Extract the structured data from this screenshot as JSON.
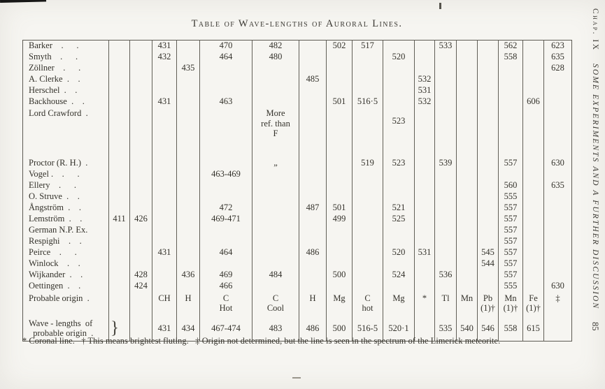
{
  "page": {
    "title": "Table of Wave-lengths of Auroral Lines.",
    "footnote": "* Coronal line.  † This means brightest fluting.  ‡ Origin not determined, but the line is seen in the spectrum of the Limerick meteorite."
  },
  "margin": {
    "chapter": "Chap. IX",
    "running_title": "SOME EXPERIMENTS AND A FURTHER DISCUSSION",
    "page_number": "85"
  },
  "table": {
    "rows": [
      {
        "cls": "",
        "cells": [
          "Barker .  .",
          "",
          "",
          "431",
          "",
          "470",
          "482",
          "",
          "502",
          "517",
          "",
          "",
          "533",
          "",
          "",
          "562",
          "",
          "623"
        ]
      },
      {
        "cls": "",
        "cells": [
          "Smyth .  .",
          "",
          "",
          "432",
          "",
          "464",
          "480",
          "",
          "",
          "",
          "520",
          "",
          "",
          "",
          "",
          "558",
          "",
          "635"
        ]
      },
      {
        "cls": "",
        "cells": [
          "Zöllner .  .",
          "",
          "",
          "",
          "435",
          "",
          "",
          "",
          "",
          "",
          "",
          "",
          "",
          "",
          "",
          "",
          "",
          "628"
        ]
      },
      {
        "cls": "",
        "cells": [
          "A. Clerke . .",
          "",
          "",
          "",
          "",
          "",
          "",
          "485",
          "",
          "",
          "",
          "532",
          "",
          "",
          "",
          "",
          "",
          ""
        ]
      },
      {
        "cls": "",
        "cells": [
          "Herschel . .",
          "",
          "",
          "",
          "",
          "",
          "",
          "",
          "",
          "",
          "",
          "531",
          "",
          "",
          "",
          "",
          "",
          ""
        ]
      },
      {
        "cls": "",
        "cells": [
          "Backhouse . .",
          "",
          "",
          "431",
          "",
          "463",
          "",
          "",
          "501",
          "516·5",
          "",
          "532",
          "",
          "",
          "",
          "",
          "606",
          ""
        ]
      },
      {
        "cls": "row-tall",
        "cells": [
          "Lord Crawford .",
          "",
          "",
          "",
          "",
          "",
          "More\nref. than\nF",
          "",
          "",
          "",
          "523",
          "",
          "",
          "",
          "",
          "",
          "",
          ""
        ]
      },
      {
        "cls": "row-spacer",
        "cells": [
          "",
          "",
          "",
          "",
          "",
          "",
          "",
          "",
          "",
          "",
          "",
          "",
          "",
          "",
          "",
          "",
          "",
          ""
        ]
      },
      {
        "cls": "",
        "cells": [
          "Proctor (R. H.) .",
          "",
          "",
          "",
          "",
          "",
          "„",
          "",
          "",
          "519",
          "523",
          "",
          "539",
          "",
          "",
          "557",
          "",
          "630"
        ]
      },
      {
        "cls": "",
        "cells": [
          "Vogel . .  .",
          "",
          "",
          "",
          "",
          "463-469",
          "",
          "",
          "",
          "",
          "",
          "",
          "",
          "",
          "",
          "",
          "",
          ""
        ]
      },
      {
        "cls": "",
        "cells": [
          "Ellery .  .",
          "",
          "",
          "",
          "",
          "",
          "",
          "",
          "",
          "",
          "",
          "",
          "",
          "",
          "",
          "560",
          "",
          "635"
        ]
      },
      {
        "cls": "",
        "cells": [
          "O. Struve . .",
          "",
          "",
          "",
          "",
          "",
          "",
          "",
          "",
          "",
          "",
          "",
          "",
          "",
          "",
          "555",
          "",
          ""
        ]
      },
      {
        "cls": "",
        "cells": [
          "Ångström . .",
          "",
          "",
          "",
          "",
          "472",
          "",
          "487",
          "501",
          "",
          "521",
          "",
          "",
          "",
          "",
          "557",
          "",
          ""
        ]
      },
      {
        "cls": "",
        "cells": [
          "Lemström . .",
          "411",
          "426",
          "",
          "",
          "469-471",
          "",
          "",
          "499",
          "",
          "525",
          "",
          "",
          "",
          "",
          "557",
          "",
          ""
        ]
      },
      {
        "cls": "",
        "cells": [
          "German N.P. Ex.",
          "",
          "",
          "",
          "",
          "",
          "",
          "",
          "",
          "",
          "",
          "",
          "",
          "",
          "",
          "557",
          "",
          ""
        ]
      },
      {
        "cls": "",
        "cells": [
          "Respighi . .",
          "",
          "",
          "",
          "",
          "",
          "",
          "",
          "",
          "",
          "",
          "",
          "",
          "",
          "",
          "557",
          "",
          ""
        ]
      },
      {
        "cls": "",
        "cells": [
          "Peirce .  .",
          "",
          "",
          "431",
          "",
          "464",
          "",
          "486",
          "",
          "",
          "520",
          "531",
          "",
          "",
          "545",
          "557",
          "",
          ""
        ]
      },
      {
        "cls": "",
        "cells": [
          "Winlock . .",
          "",
          "",
          "",
          "",
          "",
          "",
          "",
          "",
          "",
          "",
          "",
          "",
          "",
          "544",
          "557",
          "",
          ""
        ]
      },
      {
        "cls": "",
        "cells": [
          "Wijkander . .",
          "",
          "428",
          "",
          "436",
          "469",
          "484",
          "",
          "500",
          "",
          "524",
          "",
          "536",
          "",
          "",
          "557",
          "",
          ""
        ]
      },
      {
        "cls": "",
        "cells": [
          "Oettingen . .",
          "",
          "424",
          "",
          "",
          "466",
          "",
          "",
          "",
          "",
          "",
          "",
          "",
          "",
          "",
          "555",
          "",
          "630"
        ]
      },
      {
        "cls": "row-origin",
        "cells": [
          "Probable origin .",
          "",
          "",
          "CH",
          "H",
          "C\nHot",
          "C\nCool",
          "H",
          "Mg",
          "C\nhot",
          "Mg",
          "*",
          "Tl",
          "Mn",
          "Pb\n(1)†",
          "Mn\n(1)†",
          "Fe\n(1)†",
          "‡"
        ]
      },
      {
        "cls": "row-wl",
        "cells": [
          "Wave - lengths of\n probable origin .",
          "}",
          "",
          "431",
          "434",
          "467-474",
          "483",
          "486",
          "500",
          "516-5",
          "520·1",
          "",
          "535",
          "540",
          "546",
          "558",
          "615",
          ""
        ]
      }
    ]
  }
}
